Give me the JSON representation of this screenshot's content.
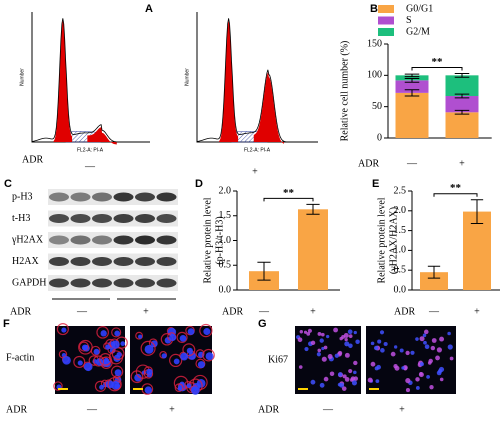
{
  "panel_a": {
    "label": "A",
    "ylabel": "Number",
    "xlabel": "FL2-A: PI-A",
    "treatment": "ADR",
    "groups": [
      "—",
      "+"
    ]
  },
  "panel_c": {
    "label": "C",
    "rows": [
      "p-H3",
      "t-H3",
      "γH2AX",
      "H2AX",
      "GAPDH"
    ],
    "treatment": "ADR",
    "groups": [
      "—",
      "+"
    ]
  },
  "panel_f": {
    "label": "F",
    "stain": "F-actin",
    "treatment": "ADR",
    "groups": [
      "—",
      "+"
    ]
  },
  "panel_g": {
    "label": "G",
    "stain": "Ki67",
    "treatment": "ADR",
    "groups": [
      "—",
      "+"
    ]
  },
  "chart_data": [
    {
      "type": "stacked_bar",
      "panel": "B",
      "ylabel": [
        "Relative cell number (%)"
      ],
      "xlabel": "ADR",
      "categories": [
        "—",
        "+"
      ],
      "series": [
        {
          "name": "G0/G1",
          "color": "#f9a545",
          "values": [
            72,
            41
          ],
          "errors": [
            5,
            3
          ]
        },
        {
          "name": "S",
          "color": "#b04fd0",
          "values": [
            20,
            26
          ],
          "errors": [
            3,
            3
          ]
        },
        {
          "name": "G2/M",
          "color": "#1dbf7d",
          "values": [
            8,
            33
          ],
          "errors": [
            2,
            3
          ]
        }
      ],
      "ylim": [
        0,
        150
      ],
      "yticks": [
        0,
        50,
        100,
        150
      ],
      "annotation": "**"
    },
    {
      "type": "bar",
      "panel": "D",
      "ylabel": [
        "Relative protein level",
        "(p-H3/t-H3)"
      ],
      "xlabel": "ADR",
      "categories": [
        "—",
        "+"
      ],
      "values": [
        0.38,
        1.63
      ],
      "errors": [
        0.18,
        0.1
      ],
      "color": "#f9a545",
      "ylim": [
        0,
        2
      ],
      "yticks": [
        {
          "value": 0,
          "label": "0.0"
        },
        0.5,
        {
          "value": 1,
          "label": "1.0"
        },
        1.5,
        {
          "value": 2,
          "label": "2.0"
        }
      ],
      "annotation": "**"
    },
    {
      "type": "bar",
      "panel": "E",
      "ylabel": [
        "Relative protein level",
        "(γH2AX/H2AX)"
      ],
      "xlabel": "ADR",
      "categories": [
        "—",
        "+"
      ],
      "values": [
        0.45,
        1.98
      ],
      "errors": [
        0.15,
        0.3
      ],
      "color": "#f9a545",
      "ylim": [
        0,
        2.5
      ],
      "yticks": [
        {
          "value": 0,
          "label": "0.0"
        },
        0.5,
        {
          "value": 1,
          "label": "1.0"
        },
        1.5,
        {
          "value": 2,
          "label": "2.0"
        },
        2.5
      ],
      "annotation": "**"
    }
  ]
}
